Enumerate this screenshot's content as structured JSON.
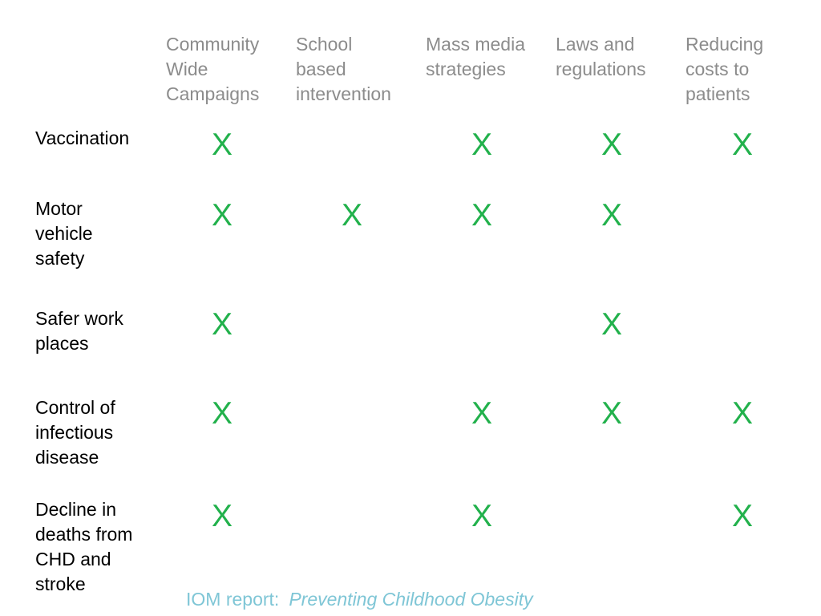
{
  "columns": [
    "Community\nWide\nCampaigns",
    "School\nbased\nintervention",
    "Mass media\nstrategies",
    "Laws and\nregulations",
    "Reducing\ncosts to\npatients"
  ],
  "rows": [
    {
      "label": "Vaccination",
      "marks": [
        "X",
        "",
        "X",
        "X",
        "X"
      ]
    },
    {
      "label": "Motor\nvehicle\nsafety",
      "marks": [
        "X",
        "X",
        "X",
        "X",
        ""
      ]
    },
    {
      "label": "Safer work\nplaces",
      "marks": [
        "X",
        "",
        "",
        "X",
        ""
      ]
    },
    {
      "label": "Control of\ninfectious\ndisease",
      "marks": [
        "X",
        "",
        "X",
        "X",
        "X"
      ]
    },
    {
      "label": "Decline in\ndeaths from\nCHD and\nstroke",
      "marks": [
        "X",
        "",
        "X",
        "",
        "X"
      ]
    }
  ],
  "caption": {
    "prefix": "IOM report:",
    "title": "Preventing Childhood Obesity"
  },
  "colors": {
    "mark": "#22b14c",
    "header": "#8c8c8c",
    "caption": "#7fc6d6"
  }
}
